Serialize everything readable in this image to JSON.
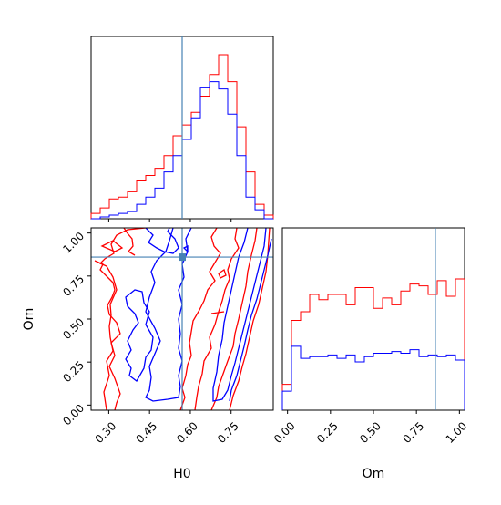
{
  "chart_data": {
    "type": "corner",
    "parameters": [
      "H0",
      "Om"
    ],
    "truth": {
      "H0": 0.57,
      "Om": 0.86
    },
    "colors": {
      "series_a": "#ff0000",
      "series_b": "#0000ff",
      "truth": "#4682b4"
    },
    "axes": {
      "H0": {
        "label": "H0",
        "range": [
          0.235,
          0.905
        ],
        "ticks": [
          0.3,
          0.45,
          0.6,
          0.75
        ],
        "tick_labels": [
          "0.30",
          "0.45",
          "0.60",
          "0.75"
        ]
      },
      "Om": {
        "label": "Om",
        "range": [
          -0.03,
          1.03
        ],
        "ticks": [
          0.0,
          0.25,
          0.5,
          0.75,
          1.0
        ],
        "tick_labels": [
          "0.00",
          "0.25",
          "0.50",
          "0.75",
          "1.00"
        ]
      }
    },
    "hist_H0": {
      "bins": 20,
      "series_a": [
        0.03,
        0.06,
        0.11,
        0.12,
        0.15,
        0.21,
        0.24,
        0.28,
        0.35,
        0.46,
        0.52,
        0.59,
        0.68,
        0.8,
        0.91,
        0.76,
        0.51,
        0.26,
        0.08,
        0.02
      ],
      "series_b": [
        0.0,
        0.01,
        0.02,
        0.03,
        0.04,
        0.08,
        0.12,
        0.17,
        0.26,
        0.35,
        0.44,
        0.56,
        0.73,
        0.76,
        0.72,
        0.58,
        0.35,
        0.12,
        0.05,
        0.0
      ]
    },
    "hist_Om": {
      "bins": 20,
      "series_a": [
        0.15,
        0.52,
        0.57,
        0.67,
        0.64,
        0.67,
        0.67,
        0.61,
        0.71,
        0.71,
        0.59,
        0.65,
        0.61,
        0.69,
        0.73,
        0.72,
        0.67,
        0.75,
        0.66,
        0.76
      ],
      "series_b": [
        0.11,
        0.37,
        0.3,
        0.31,
        0.31,
        0.32,
        0.3,
        0.32,
        0.28,
        0.31,
        0.33,
        0.33,
        0.34,
        0.33,
        0.35,
        0.31,
        0.32,
        0.31,
        0.32,
        0.29
      ]
    }
  }
}
